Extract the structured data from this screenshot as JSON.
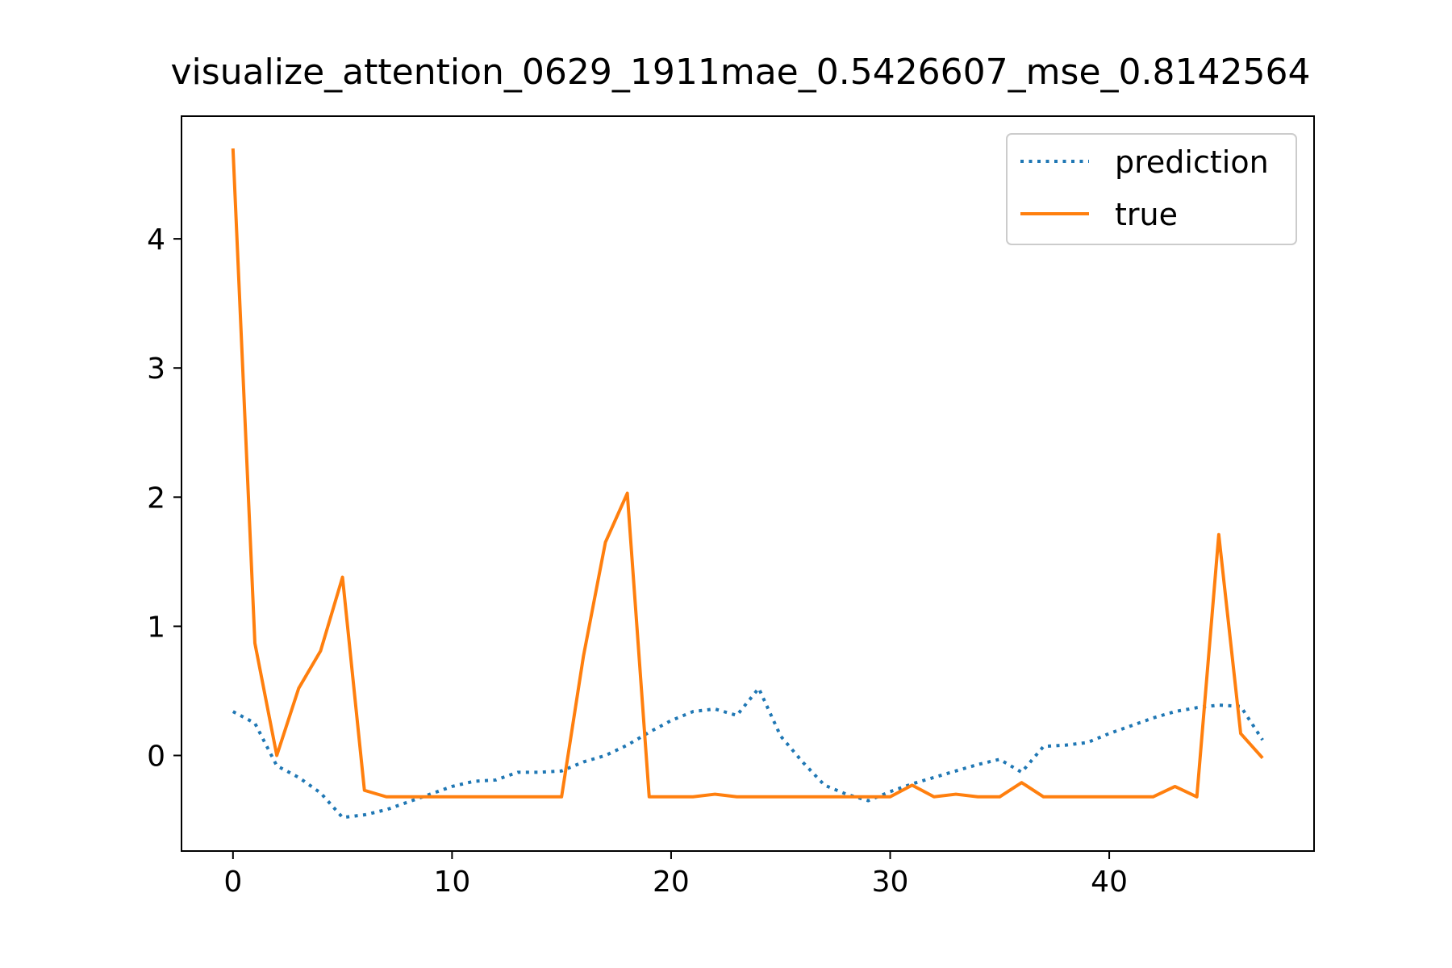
{
  "chart_data": {
    "type": "line",
    "title": "visualize_attention_0629_1911mae_0.5426607_mse_0.8142564",
    "xlabel": "",
    "ylabel": "",
    "xlim": [
      -2.35,
      49.35
    ],
    "ylim": [
      -0.74,
      4.95
    ],
    "xticks": [
      0,
      10,
      20,
      30,
      40
    ],
    "yticks": [
      0,
      1,
      2,
      3,
      4
    ],
    "grid": false,
    "legend": {
      "position": "top-right"
    },
    "x": [
      0,
      1,
      2,
      3,
      4,
      5,
      6,
      7,
      8,
      9,
      10,
      11,
      12,
      13,
      14,
      15,
      16,
      17,
      18,
      19,
      20,
      21,
      22,
      23,
      24,
      25,
      26,
      27,
      28,
      29,
      30,
      31,
      32,
      33,
      34,
      35,
      36,
      37,
      38,
      39,
      40,
      41,
      42,
      43,
      44,
      45,
      46,
      47
    ],
    "series": [
      {
        "name": "prediction",
        "color": "#1f77b4",
        "style": "dotted",
        "values": [
          0.34,
          0.25,
          -0.08,
          -0.17,
          -0.29,
          -0.48,
          -0.46,
          -0.42,
          -0.36,
          -0.3,
          -0.24,
          -0.2,
          -0.19,
          -0.13,
          -0.13,
          -0.12,
          -0.05,
          0.0,
          0.08,
          0.18,
          0.27,
          0.34,
          0.36,
          0.31,
          0.52,
          0.15,
          -0.05,
          -0.23,
          -0.3,
          -0.35,
          -0.28,
          -0.22,
          -0.17,
          -0.12,
          -0.07,
          -0.03,
          -0.13,
          0.07,
          0.08,
          0.1,
          0.17,
          0.23,
          0.29,
          0.34,
          0.37,
          0.39,
          0.38,
          0.12
        ]
      },
      {
        "name": "true",
        "color": "#ff7f0e",
        "style": "solid",
        "values": [
          4.7,
          0.87,
          0.0,
          0.52,
          0.81,
          1.38,
          -0.27,
          -0.32,
          -0.32,
          -0.32,
          -0.32,
          -0.32,
          -0.32,
          -0.32,
          -0.32,
          -0.32,
          0.77,
          1.65,
          2.03,
          -0.32,
          -0.32,
          -0.32,
          -0.3,
          -0.32,
          -0.32,
          -0.32,
          -0.32,
          -0.32,
          -0.32,
          -0.32,
          -0.32,
          -0.23,
          -0.32,
          -0.3,
          -0.32,
          -0.32,
          -0.21,
          -0.32,
          -0.32,
          -0.32,
          -0.32,
          -0.32,
          -0.32,
          -0.24,
          -0.32,
          1.71,
          0.17,
          -0.02
        ]
      }
    ]
  }
}
